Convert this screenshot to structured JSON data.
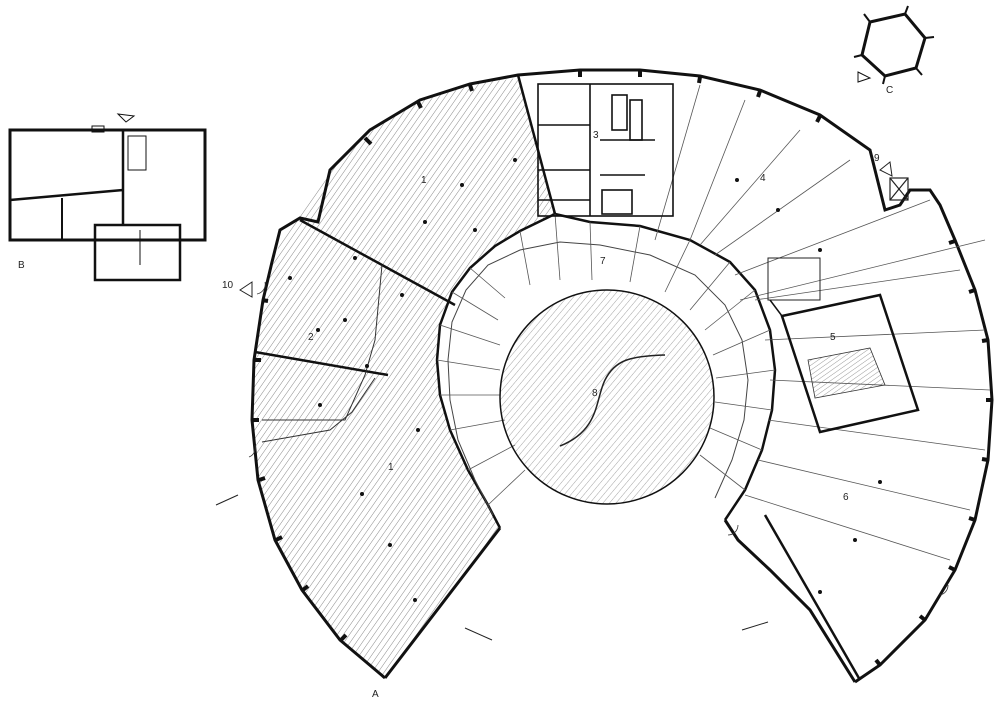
{
  "plan": {
    "buildings": {
      "A": {
        "label": "A"
      },
      "B": {
        "label": "B"
      },
      "C": {
        "label": "C"
      }
    },
    "rooms": [
      {
        "id": "room-1-upper",
        "label": "1"
      },
      {
        "id": "room-1-lower",
        "label": "1"
      },
      {
        "id": "room-2",
        "label": "2"
      },
      {
        "id": "room-3",
        "label": "3"
      },
      {
        "id": "room-4",
        "label": "4"
      },
      {
        "id": "room-5",
        "label": "5"
      },
      {
        "id": "room-6",
        "label": "6"
      },
      {
        "id": "room-7",
        "label": "7"
      },
      {
        "id": "room-8",
        "label": "8"
      },
      {
        "id": "room-9",
        "label": "9"
      },
      {
        "id": "room-10",
        "label": "10"
      }
    ]
  }
}
